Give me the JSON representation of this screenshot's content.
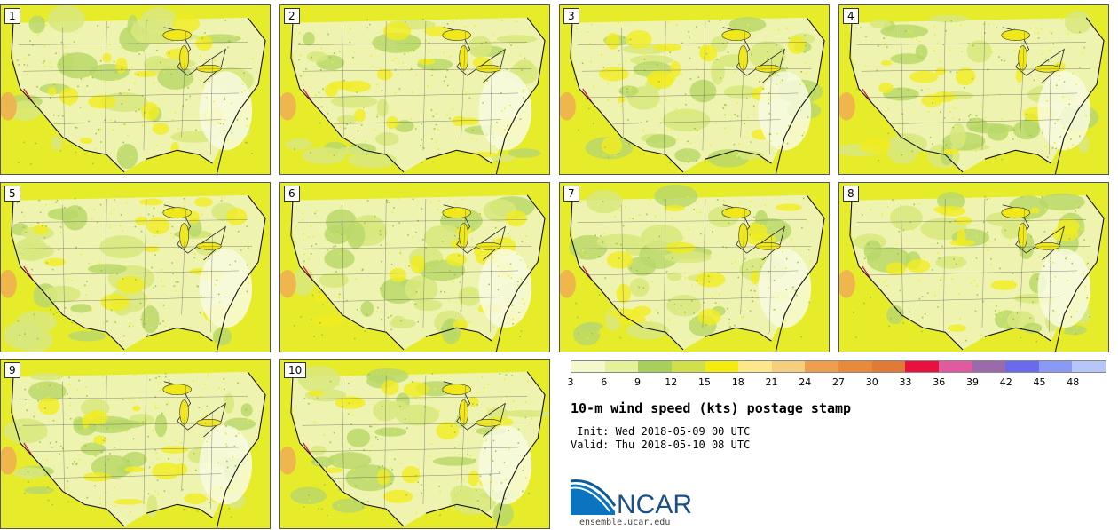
{
  "panels": [
    {
      "label": "1"
    },
    {
      "label": "2"
    },
    {
      "label": "3"
    },
    {
      "label": "4"
    },
    {
      "label": "5"
    },
    {
      "label": "6"
    },
    {
      "label": "7"
    },
    {
      "label": "8"
    },
    {
      "label": "9"
    },
    {
      "label": "10"
    }
  ],
  "legend": {
    "colors": [
      "#f5f7cc",
      "#e5f09a",
      "#a8cf5c",
      "#cfe04a",
      "#f4ec0c",
      "#fbe88a",
      "#f6cf7e",
      "#ee9e4c",
      "#e88a3a",
      "#e07a36",
      "#e8103e",
      "#e05aa0",
      "#9a6aaa",
      "#6a6aee",
      "#8a9af4",
      "#b6c6f8"
    ],
    "ticks": [
      "3",
      "6",
      "9",
      "12",
      "15",
      "18",
      "21",
      "24",
      "27",
      "30",
      "33",
      "36",
      "39",
      "42",
      "45",
      "48"
    ]
  },
  "title": "10-m wind speed (kts) postage stamp",
  "init": " Init: Wed 2018-05-09 00 UTC",
  "valid": "Valid: Thu 2018-05-10 08 UTC",
  "logo_text": "NCAR",
  "site": "ensemble.ucar.edu"
}
